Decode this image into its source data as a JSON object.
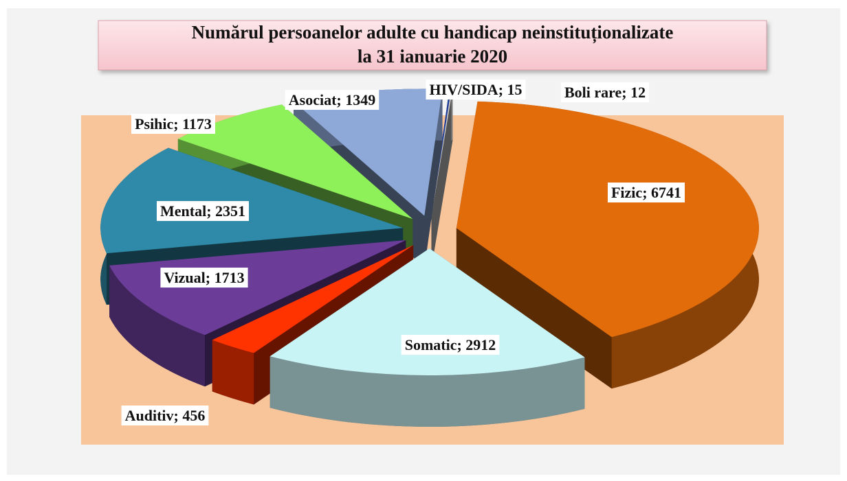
{
  "chart_data": {
    "type": "pie",
    "title": [
      "Numărul persoanelor adulte cu handicap neinstituționalizate",
      "la  31 ianuarie 2020"
    ],
    "label_separator": "; ",
    "categories": [
      "Fizic",
      "Somatic",
      "Auditiv",
      "Vizual",
      "Mental",
      "Psihic",
      "Asociat",
      "HIV/SIDA",
      "Boli rare"
    ],
    "values": [
      6741,
      2912,
      456,
      1713,
      2351,
      1173,
      1349,
      15,
      12
    ],
    "colors": [
      "#e36c0a",
      "#c9f4f6",
      "#ff3300",
      "#6b3d99",
      "#2e8aa8",
      "#8ff15a",
      "#8ea8d8",
      "#2040a0",
      "#d0d0d0"
    ]
  }
}
